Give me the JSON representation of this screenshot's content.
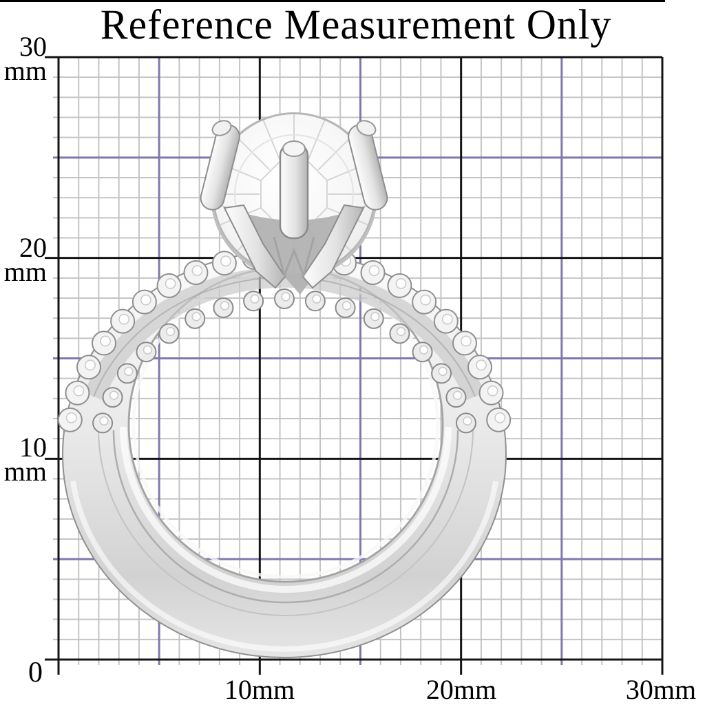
{
  "title": "Reference Measurement Only",
  "y_axis": {
    "labels": [
      {
        "number": "30",
        "unit": "mm"
      },
      {
        "number": "20",
        "unit": "mm"
      },
      {
        "number": "10",
        "unit": "mm"
      }
    ]
  },
  "x_axis": {
    "labels": [
      "10mm",
      "20mm",
      "30mm"
    ]
  },
  "origin_label": "0",
  "grid": {
    "range_mm": 30,
    "minor_step_mm": 1,
    "accent_step_mm": 5,
    "major_step_mm": 10,
    "minor_color": "#c4c4c4",
    "accent_color": "#7f78ae",
    "major_color": "#141414"
  },
  "subject": {
    "name": "engagement-ring-set",
    "description": "Silver-tone solitaire engagement ring with pave wedding band set, photographed over millimeter reference grid",
    "metal_light": "#f7f7f7",
    "metal_mid": "#dedede",
    "metal_dark": "#a2a2a2"
  }
}
